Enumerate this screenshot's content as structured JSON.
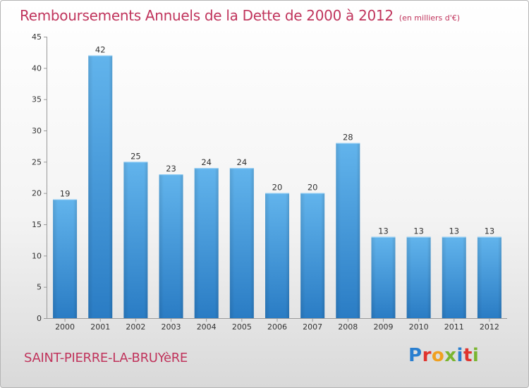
{
  "header": {
    "title": "Remboursements Annuels de la Dette de 2000 à 2012",
    "unit": "(en milliers d'€)"
  },
  "footer": {
    "city": "SAINT-PIERRE-LA-BRUYèRE",
    "logo": [
      "P",
      "r",
      "o",
      "x",
      "i",
      "t",
      "i"
    ]
  },
  "colors": {
    "accent": "#c0345c",
    "bar_light": "#62b4ec",
    "bar_dark": "#2a7cc4"
  },
  "chart_data": {
    "type": "bar",
    "title": "Remboursements Annuels de la Dette de 2000 à 2012",
    "xlabel": "",
    "ylabel": "",
    "categories": [
      "2000",
      "2001",
      "2002",
      "2003",
      "2004",
      "2005",
      "2006",
      "2007",
      "2008",
      "2009",
      "2010",
      "2011",
      "2012"
    ],
    "values": [
      19,
      42,
      25,
      23,
      24,
      24,
      20,
      20,
      28,
      13,
      13,
      13,
      13
    ],
    "ylim": [
      0,
      45
    ],
    "yticks": [
      0,
      5,
      10,
      15,
      20,
      25,
      30,
      35,
      40,
      45
    ],
    "grid": false,
    "legend": "none"
  }
}
